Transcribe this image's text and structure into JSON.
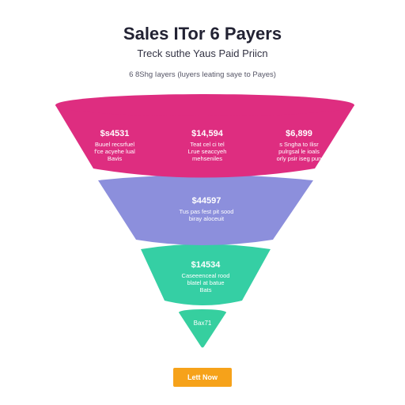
{
  "header": {
    "title": "Sales ITor 6 Payers",
    "subtitle": "Treck suthe Yaus Paid Priicn",
    "caption": "6 8Shg Iayers (luyers leating saye to Payes)"
  },
  "colors": {
    "stage1": "#de2d80",
    "stage2": "#8c8fdc",
    "stage3": "#35cfa4",
    "stage4": "#36cf9f",
    "button": "#f6a21a"
  },
  "funnel": {
    "stage1": {
      "left": {
        "value": "$s4531",
        "desc": [
          "Buuel recsrfuel",
          "f'ce acyehe lual",
          "Bavis"
        ]
      },
      "center": {
        "value": "$14,594",
        "desc": [
          "Teat cel ci tel",
          "Lrue seaccyeh",
          "mehseniles"
        ]
      },
      "right": {
        "value": "$6,899",
        "desc": [
          "s Sngha to Ilisr",
          "pulrgsal le ioals",
          "orly psir iseg pun"
        ]
      }
    },
    "stage2": {
      "value": "$44597",
      "desc": [
        "Tus pas fest pit sood",
        "biray aloceuit"
      ]
    },
    "stage3": {
      "value": "$14534",
      "desc": [
        "Caseeenceal rood",
        "blatel at batue",
        "Bats"
      ]
    },
    "stage4": {
      "value": "Bax71"
    }
  },
  "button": {
    "label": "Lett Now"
  }
}
